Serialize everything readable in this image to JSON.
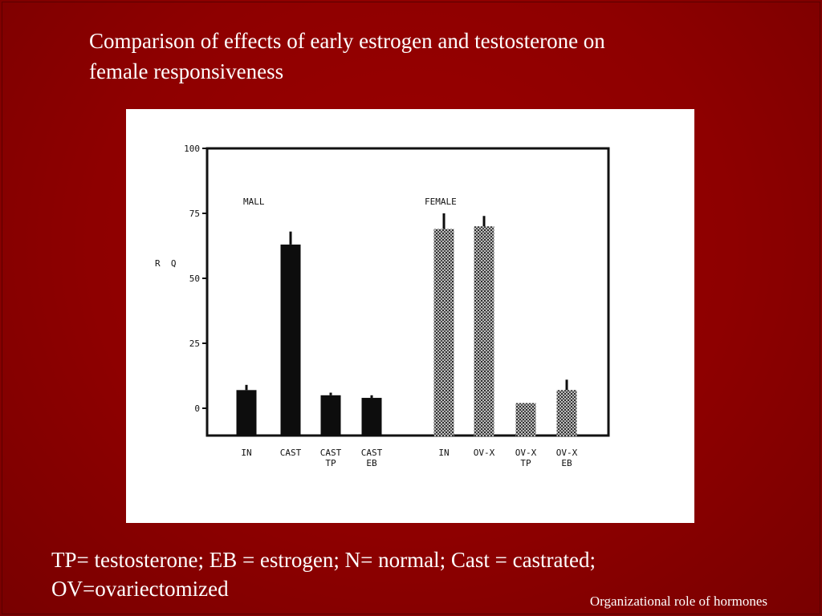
{
  "slide": {
    "title": "Comparison of effects of early estrogen and testosterone on\nfemale responsiveness",
    "footnote": "TP=  testosterone; EB = estrogen; N= normal; Cast = castrated;\nOV=ovariectomized",
    "footer": "Organizational role of hormones"
  },
  "chart_data": {
    "type": "bar",
    "ylabel": "R  Q",
    "ylim": [
      0,
      100
    ],
    "y_ticks": [
      {
        "value": 0,
        "label": "0"
      },
      {
        "value": 25,
        "label": "25"
      },
      {
        "value": 50,
        "label": "50"
      },
      {
        "value": 75,
        "label": "75"
      },
      {
        "value": 100,
        "label": "100"
      }
    ],
    "groups": [
      {
        "name": "MALL",
        "fill": "solid",
        "bars": [
          {
            "label": "IN",
            "value": 7,
            "error": 2
          },
          {
            "label": "CAST",
            "value": 63,
            "error": 5
          },
          {
            "label": "CAST\nTP",
            "value": 5,
            "error": 1
          },
          {
            "label": "CAST\nEB",
            "value": 4,
            "error": 1
          }
        ]
      },
      {
        "name": "FEMALE",
        "fill": "stippled",
        "bars": [
          {
            "label": "IN",
            "value": 69,
            "error": 6
          },
          {
            "label": "OV-X",
            "value": 70,
            "error": 4
          },
          {
            "label": "OV-X\nTP",
            "value": 2,
            "error": 0
          },
          {
            "label": "OV-X\nEB",
            "value": 7,
            "error": 4
          }
        ]
      }
    ],
    "grid": false,
    "legend": "none",
    "colors": {
      "solid": "#0d0d0d",
      "stippled": "#6a6a6a",
      "axis": "#111111"
    }
  }
}
